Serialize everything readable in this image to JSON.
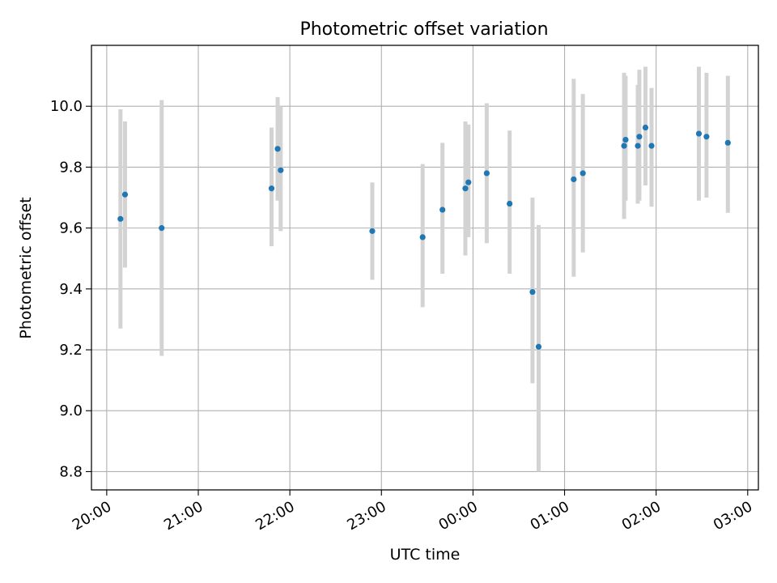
{
  "chart_data": {
    "type": "scatter",
    "title": "Photometric offset variation",
    "xlabel": "UTC time",
    "ylabel": "Photometric offset",
    "x_ticks": [
      "20:00",
      "21:00",
      "22:00",
      "23:00",
      "00:00",
      "01:00",
      "02:00",
      "03:00"
    ],
    "y_ticks": [
      "8.8",
      "9.0",
      "9.2",
      "9.4",
      "9.6",
      "9.8",
      "10.0"
    ],
    "xlim": [
      "19:50",
      "03:07"
    ],
    "ylim": [
      8.74,
      10.2
    ],
    "grid": true,
    "marker_color": "#1f77b4",
    "errorbar_color": "#d3d3d3",
    "points": [
      {
        "t": "20:09",
        "y": 9.63,
        "lo": 9.27,
        "hi": 9.99
      },
      {
        "t": "20:12",
        "y": 9.71,
        "lo": 9.47,
        "hi": 9.95
      },
      {
        "t": "20:36",
        "y": 9.6,
        "lo": 9.18,
        "hi": 10.02
      },
      {
        "t": "21:48",
        "y": 9.73,
        "lo": 9.54,
        "hi": 9.93
      },
      {
        "t": "21:52",
        "y": 9.86,
        "lo": 9.69,
        "hi": 10.03
      },
      {
        "t": "21:54",
        "y": 9.79,
        "lo": 9.59,
        "hi": 10.0
      },
      {
        "t": "22:54",
        "y": 9.59,
        "lo": 9.43,
        "hi": 9.75
      },
      {
        "t": "23:27",
        "y": 9.57,
        "lo": 9.34,
        "hi": 9.81
      },
      {
        "t": "23:40",
        "y": 9.66,
        "lo": 9.45,
        "hi": 9.88
      },
      {
        "t": "23:55",
        "y": 9.73,
        "lo": 9.51,
        "hi": 9.95
      },
      {
        "t": "23:57",
        "y": 9.75,
        "lo": 9.57,
        "hi": 9.94
      },
      {
        "t": "00:09",
        "y": 9.78,
        "lo": 9.55,
        "hi": 10.01
      },
      {
        "t": "00:24",
        "y": 9.68,
        "lo": 9.45,
        "hi": 9.92
      },
      {
        "t": "00:39",
        "y": 9.39,
        "lo": 9.09,
        "hi": 9.7
      },
      {
        "t": "00:43",
        "y": 9.21,
        "lo": 8.8,
        "hi": 9.61
      },
      {
        "t": "01:06",
        "y": 9.76,
        "lo": 9.44,
        "hi": 10.09
      },
      {
        "t": "01:12",
        "y": 9.78,
        "lo": 9.52,
        "hi": 10.04
      },
      {
        "t": "01:39",
        "y": 9.87,
        "lo": 9.63,
        "hi": 10.11
      },
      {
        "t": "01:40",
        "y": 9.89,
        "lo": 9.69,
        "hi": 10.1
      },
      {
        "t": "01:48",
        "y": 9.87,
        "lo": 9.68,
        "hi": 10.07
      },
      {
        "t": "01:49",
        "y": 9.9,
        "lo": 9.69,
        "hi": 10.12
      },
      {
        "t": "01:53",
        "y": 9.93,
        "lo": 9.74,
        "hi": 10.13
      },
      {
        "t": "01:57",
        "y": 9.87,
        "lo": 9.67,
        "hi": 10.06
      },
      {
        "t": "02:28",
        "y": 9.91,
        "lo": 9.69,
        "hi": 10.13
      },
      {
        "t": "02:33",
        "y": 9.9,
        "lo": 9.7,
        "hi": 10.11
      },
      {
        "t": "02:47",
        "y": 9.88,
        "lo": 9.65,
        "hi": 10.1
      }
    ]
  }
}
